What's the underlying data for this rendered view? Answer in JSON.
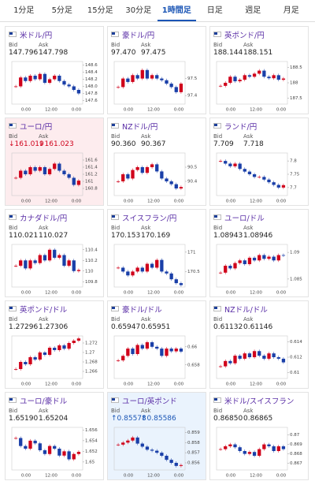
{
  "tabs": [
    "1分足",
    "5分足",
    "15分足",
    "30分足",
    "1時間足",
    "日足",
    "週足",
    "月足"
  ],
  "selected_tab": 4,
  "bid_label": "Bid",
  "ask_label": "Ask",
  "time_labels": [
    "0:00",
    "12:00",
    "0:00"
  ],
  "cards": [
    {
      "title": "米ドル/円",
      "bid": "147.796",
      "ask": "147.798",
      "ylim": [
        147.5,
        148.7
      ],
      "yticks": [
        148.6,
        148.4,
        148.2,
        {
          "value": 148,
          "label": "148.0"
        },
        147.8,
        147.6
      ],
      "closes": [
        148.0,
        148.25,
        148.15,
        148.3,
        148.2,
        148.35,
        148.1,
        148.2,
        148.3,
        148.15,
        148.05,
        148.0,
        147.9,
        147.8
      ]
    },
    {
      "title": "豪ドル/円",
      "bid": "97.470",
      "ask": "97.475",
      "ylim": [
        97.35,
        97.6
      ],
      "yticks": [
        97.5,
        97.4
      ],
      "closes": [
        97.45,
        97.5,
        97.48,
        97.52,
        97.5,
        97.55,
        97.5,
        97.52,
        97.5,
        97.49,
        97.47,
        97.45,
        97.42,
        97.47
      ]
    },
    {
      "title": "英ポンド/円",
      "bid": "188.144",
      "ask": "188.151",
      "ylim": [
        187.3,
        188.7
      ],
      "yticks": [
        188.5,
        188,
        187.5
      ],
      "closes": [
        187.9,
        188.0,
        188.2,
        188.05,
        188.1,
        188.25,
        188.2,
        188.3,
        188.4,
        188.2,
        188.15,
        188.25,
        188.1,
        188.14
      ]
    },
    {
      "title": "ユーロ/円",
      "bid": "161.019",
      "ask": "161.023",
      "arrow": "↓",
      "highlight": "down",
      "ylim": [
        160.6,
        161.8
      ],
      "yticks": [
        161.6,
        161.4,
        161.2,
        161,
        160.8
      ],
      "closes": [
        161.1,
        161.3,
        161.2,
        161.4,
        161.3,
        161.4,
        161.2,
        161.35,
        161.5,
        161.3,
        161.2,
        161.1,
        160.9,
        161.02
      ]
    },
    {
      "title": "NZドル/円",
      "bid": "90.360",
      "ask": "90.367",
      "ylim": [
        90.3,
        90.6
      ],
      "yticks": [
        90.5,
        90.4
      ],
      "closes": [
        90.4,
        90.45,
        90.42,
        90.48,
        90.5,
        90.46,
        90.5,
        90.52,
        90.47,
        90.42,
        90.4,
        90.38,
        90.35,
        90.36
      ]
    },
    {
      "title": "ランド/円",
      "bid": "7.709",
      "ask": "7.718",
      "ylim": [
        7.67,
        7.83
      ],
      "yticks": [
        7.8,
        7.75,
        7.7
      ],
      "closes": [
        7.8,
        7.79,
        7.78,
        7.79,
        7.77,
        7.76,
        7.75,
        7.74,
        7.74,
        7.73,
        7.72,
        7.71,
        7.7,
        7.709
      ]
    },
    {
      "title": "カナダドル/円",
      "bid": "110.021",
      "ask": "110.027",
      "ylim": [
        109.7,
        110.5
      ],
      "yticks": [
        110.4,
        110.2,
        110,
        109.8
      ],
      "closes": [
        110.1,
        110.2,
        110.05,
        110.2,
        110.15,
        110.3,
        110.2,
        110.4,
        110.25,
        110.3,
        110.1,
        110.2,
        110.0,
        110.02
      ]
    },
    {
      "title": "スイスフラン/円",
      "bid": "170.153",
      "ask": "170.169",
      "ylim": [
        170.1,
        171.2
      ],
      "yticks": [
        171,
        170.5
      ],
      "closes": [
        170.6,
        170.5,
        170.4,
        170.5,
        170.6,
        170.5,
        170.7,
        170.6,
        170.8,
        170.5,
        170.45,
        170.3,
        170.2,
        170.15
      ]
    },
    {
      "title": "ユーロ/ドル",
      "bid": "1.08943",
      "ask": "1.08946",
      "ylim": [
        1.0835,
        1.0915
      ],
      "yticks": [
        1.09,
        1.085
      ],
      "closes": [
        1.0862,
        1.0875,
        1.087,
        1.088,
        1.0885,
        1.0878,
        1.089,
        1.0885,
        1.0895,
        1.0888,
        1.0892,
        1.0885,
        1.0895,
        1.08943
      ]
    },
    {
      "title": "英ポンド/ドル",
      "bid": "1.27296",
      "ask": "1.27306",
      "ylim": [
        1.2645,
        1.2735
      ],
      "yticks": [
        1.272,
        1.27,
        1.268,
        1.266
      ],
      "closes": [
        1.2665,
        1.268,
        1.2675,
        1.269,
        1.2685,
        1.27,
        1.2695,
        1.271,
        1.2705,
        1.2715,
        1.2708,
        1.272,
        1.2725,
        1.27296
      ]
    },
    {
      "title": "豪ドル/ドル",
      "bid": "0.65947",
      "ask": "0.65951",
      "ylim": [
        0.6565,
        0.6612
      ],
      "yticks": [
        0.66,
        0.658
      ],
      "closes": [
        0.6585,
        0.659,
        0.6598,
        0.6592,
        0.6602,
        0.6598,
        0.6605,
        0.66,
        0.6598,
        0.659,
        0.6598,
        0.6595,
        0.6598,
        0.65947
      ]
    },
    {
      "title": "NZドル/ドル",
      "bid": "0.61132",
      "ask": "0.61146",
      "ylim": [
        0.6092,
        0.6148
      ],
      "yticks": [
        0.614,
        0.612,
        0.61
      ],
      "closes": [
        0.6108,
        0.6115,
        0.6112,
        0.6122,
        0.6118,
        0.6125,
        0.612,
        0.6128,
        0.6122,
        0.6118,
        0.6125,
        0.612,
        0.6118,
        0.61132
      ]
    },
    {
      "title": "ユーロ/豪ドル",
      "bid": "1.65190",
      "ask": "1.65204",
      "ylim": [
        1.6485,
        1.6565
      ],
      "yticks": [
        1.656,
        1.654,
        1.652,
        1.65
      ],
      "closes": [
        1.6545,
        1.653,
        1.6525,
        1.654,
        1.6535,
        1.6522,
        1.6515,
        1.653,
        1.6525,
        1.6512,
        1.652,
        1.6505,
        1.6515,
        1.6519
      ]
    },
    {
      "title": "ユーロ/英ポンド",
      "bid": "0.85578",
      "ask": "0.85586",
      "arrow": "↑",
      "highlight": "up",
      "ylim": [
        0.8553,
        0.8595
      ],
      "yticks": [
        0.859,
        0.858,
        0.857,
        0.856
      ],
      "closes": [
        0.8578,
        0.858,
        0.8582,
        0.8585,
        0.8579,
        0.8576,
        0.8573,
        0.8572,
        0.857,
        0.8567,
        0.8563,
        0.856,
        0.8557,
        0.85578
      ]
    },
    {
      "title": "米ドル/スイスフラン",
      "bid": "0.86850",
      "ask": "0.86865",
      "ylim": [
        0.8663,
        0.8708
      ],
      "yticks": [
        0.87,
        0.869,
        0.868,
        0.867
      ],
      "closes": [
        0.8685,
        0.8688,
        0.869,
        0.8687,
        0.8683,
        0.868,
        0.8682,
        0.8678,
        0.8685,
        0.869,
        0.8688,
        0.8683,
        0.8688,
        0.8685
      ]
    }
  ]
}
